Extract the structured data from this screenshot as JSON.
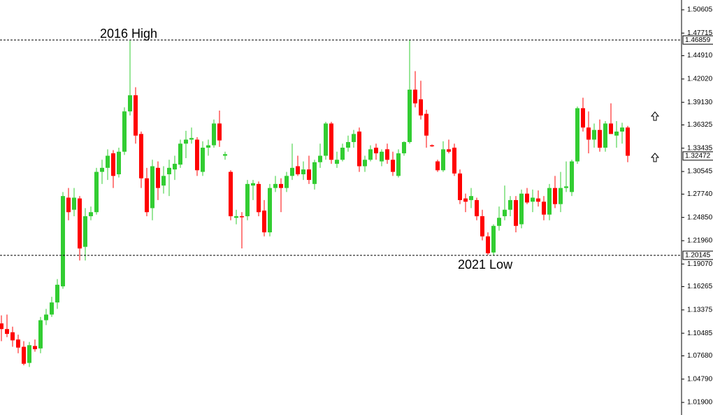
{
  "chart_data": {
    "type": "candlestick",
    "annotations": [
      "2016 High",
      "2021 Low"
    ],
    "levels": [
      1.46859,
      1.20145
    ],
    "last_price": 1.32472,
    "up_color": "#32cd32",
    "down_color": "#ff0000",
    "ylim": [
      1.0034,
      1.5182
    ],
    "yticks": [
      1.50605,
      1.47715,
      {
        "value": 1.4491,
        "label": "1.44910"
      },
      {
        "value": 1.4202,
        "label": "1.42020"
      },
      {
        "value": 1.3913,
        "label": "1.39130"
      },
      1.36325,
      1.33435,
      1.30545,
      {
        "value": 1.2774,
        "label": "1.27740"
      },
      {
        "value": 1.2485,
        "label": "1.24850"
      },
      {
        "value": 1.2196,
        "label": "1.21960"
      },
      {
        "value": 1.1907,
        "label": "1.19070"
      },
      1.16265,
      1.13375,
      1.10485,
      {
        "value": 1.0768,
        "label": "1.07680"
      },
      {
        "value": 1.0479,
        "label": "1.04790"
      },
      {
        "value": 1.019,
        "label": "1.01900"
      }
    ],
    "open": [
      1.117,
      1.11,
      1.106,
      1.097,
      1.088,
      1.068,
      1.089,
      1.086,
      1.121,
      1.128,
      1.143,
      1.163,
      1.273,
      1.258,
      1.272,
      1.212,
      1.25,
      1.255,
      1.305,
      1.31,
      1.328,
      1.302,
      1.33,
      1.38,
      1.4,
      1.352,
      1.297,
      1.26,
      1.31,
      1.288,
      1.302,
      1.308,
      1.314,
      1.34,
      1.345,
      1.345,
      1.305,
      1.335,
      1.338,
      1.365,
      1.325,
      1.305,
      1.248,
      1.25,
      1.25,
      1.288,
      1.29,
      1.257,
      1.23,
      1.285,
      1.29,
      1.285,
      1.3,
      1.312,
      1.302,
      1.308,
      1.29,
      1.317,
      1.325,
      1.365,
      1.315,
      1.32,
      1.335,
      1.342,
      1.355,
      1.312,
      1.32,
      1.335,
      1.318,
      1.333,
      1.32,
      1.3,
      1.328,
      1.342,
      1.407,
      1.395,
      1.377,
      1.338,
      1.318,
      1.307,
      1.333,
      1.335,
      1.303,
      1.272,
      1.27,
      1.27,
      1.25,
      1.225,
      1.205,
      1.238,
      1.25,
      1.258,
      1.27,
      1.24,
      1.278,
      1.268,
      1.272,
      1.268,
      1.252,
      1.285,
      1.265,
      1.285,
      1.28,
      1.318,
      1.384,
      1.36,
      1.345,
      1.357,
      1.335,
      1.365,
      1.35,
      1.355,
      1.36
    ],
    "high": [
      1.127,
      1.128,
      1.113,
      1.103,
      1.095,
      1.094,
      1.097,
      1.125,
      1.135,
      1.15,
      1.172,
      1.28,
      1.285,
      1.285,
      1.275,
      1.26,
      1.262,
      1.31,
      1.32,
      1.333,
      1.332,
      1.335,
      1.385,
      1.468,
      1.41,
      1.355,
      1.31,
      1.32,
      1.318,
      1.312,
      1.32,
      1.325,
      1.345,
      1.356,
      1.36,
      1.348,
      1.343,
      1.345,
      1.37,
      1.381,
      1.33,
      1.307,
      1.258,
      1.255,
      1.295,
      1.295,
      1.293,
      1.27,
      1.29,
      1.3,
      1.297,
      1.305,
      1.34,
      1.325,
      1.318,
      1.325,
      1.32,
      1.34,
      1.367,
      1.367,
      1.33,
      1.34,
      1.35,
      1.357,
      1.36,
      1.325,
      1.338,
      1.34,
      1.333,
      1.34,
      1.33,
      1.333,
      1.343,
      1.469,
      1.43,
      1.418,
      1.382,
      1.339,
      1.32,
      1.343,
      1.345,
      1.34,
      1.308,
      1.278,
      1.285,
      1.273,
      1.258,
      1.23,
      1.24,
      1.262,
      1.288,
      1.275,
      1.275,
      1.283,
      1.285,
      1.283,
      1.282,
      1.275,
      1.29,
      1.3,
      1.305,
      1.318,
      1.32,
      1.386,
      1.397,
      1.38,
      1.365,
      1.37,
      1.368,
      1.39,
      1.368,
      1.366,
      1.362
    ],
    "low": [
      1.095,
      1.1,
      1.088,
      1.08,
      1.065,
      1.063,
      1.082,
      1.08,
      1.115,
      1.125,
      1.135,
      1.16,
      1.245,
      1.25,
      1.195,
      1.195,
      1.245,
      1.252,
      1.29,
      1.295,
      1.285,
      1.298,
      1.326,
      1.375,
      1.34,
      1.285,
      1.25,
      1.245,
      1.27,
      1.278,
      1.275,
      1.295,
      1.31,
      1.322,
      1.34,
      1.3,
      1.3,
      1.325,
      1.335,
      1.336,
      1.32,
      1.245,
      1.24,
      1.21,
      1.245,
      1.27,
      1.25,
      1.225,
      1.225,
      1.28,
      1.255,
      1.28,
      1.295,
      1.3,
      1.295,
      1.29,
      1.283,
      1.31,
      1.32,
      1.315,
      1.31,
      1.318,
      1.33,
      1.335,
      1.305,
      1.305,
      1.318,
      1.32,
      1.312,
      1.315,
      1.3,
      1.298,
      1.325,
      1.34,
      1.385,
      1.37,
      1.335,
      1.336,
      1.305,
      1.305,
      1.328,
      1.3,
      1.265,
      1.255,
      1.26,
      1.245,
      1.22,
      1.202,
      1.201,
      1.232,
      1.245,
      1.25,
      1.23,
      1.235,
      1.265,
      1.255,
      1.262,
      1.245,
      1.245,
      1.26,
      1.255,
      1.28,
      1.275,
      1.315,
      1.355,
      1.328,
      1.335,
      1.33,
      1.33,
      1.352,
      1.335,
      1.34,
      1.317
    ],
    "close": [
      1.11,
      1.104,
      1.096,
      1.087,
      1.067,
      1.09,
      1.085,
      1.121,
      1.128,
      1.143,
      1.165,
      1.275,
      1.255,
      1.273,
      1.21,
      1.25,
      1.255,
      1.305,
      1.31,
      1.325,
      1.3,
      1.33,
      1.38,
      1.4,
      1.35,
      1.297,
      1.255,
      1.312,
      1.285,
      1.3,
      1.31,
      1.315,
      1.34,
      1.345,
      1.347,
      1.307,
      1.335,
      1.338,
      1.365,
      1.344,
      1.327,
      1.25,
      1.25,
      1.249,
      1.29,
      1.291,
      1.255,
      1.23,
      1.285,
      1.29,
      1.285,
      1.3,
      1.31,
      1.302,
      1.308,
      1.295,
      1.317,
      1.325,
      1.365,
      1.32,
      1.32,
      1.335,
      1.342,
      1.352,
      1.312,
      1.32,
      1.333,
      1.328,
      1.33,
      1.32,
      1.305,
      1.328,
      1.342,
      1.407,
      1.39,
      1.375,
      1.35,
      1.337,
      1.307,
      1.333,
      1.33,
      1.303,
      1.27,
      1.268,
      1.275,
      1.25,
      1.225,
      1.204,
      1.238,
      1.248,
      1.258,
      1.27,
      1.238,
      1.278,
      1.267,
      1.273,
      1.268,
      1.252,
      1.285,
      1.265,
      1.285,
      1.287,
      1.318,
      1.384,
      1.36,
      1.345,
      1.357,
      1.335,
      1.365,
      1.352,
      1.355,
      1.36,
      1.325
    ]
  }
}
